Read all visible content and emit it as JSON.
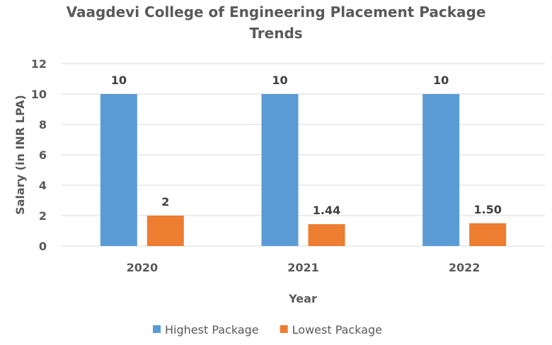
{
  "chart_data": {
    "type": "bar",
    "title": "Vaagdevi College of Engineering Placement Package Trends",
    "title_lines": [
      "Vaagdevi College of Engineering Placement Package",
      "Trends"
    ],
    "xlabel": "Year",
    "ylabel": "Salary (in INR LPA)",
    "categories": [
      "2020",
      "2021",
      "2022"
    ],
    "series": [
      {
        "name": "Highest Package",
        "values": [
          10,
          10,
          10
        ],
        "labels": [
          "10",
          "10",
          "10"
        ],
        "color": "#5B9BD5"
      },
      {
        "name": "Lowest Package",
        "values": [
          2,
          1.44,
          1.5
        ],
        "labels": [
          "2",
          "1.44",
          "1.50"
        ],
        "color": "#ED7D31"
      }
    ],
    "ylim": [
      0,
      12
    ],
    "yticks": [
      0,
      2,
      4,
      6,
      8,
      10,
      12
    ],
    "grid": true,
    "legend": "bottom"
  }
}
